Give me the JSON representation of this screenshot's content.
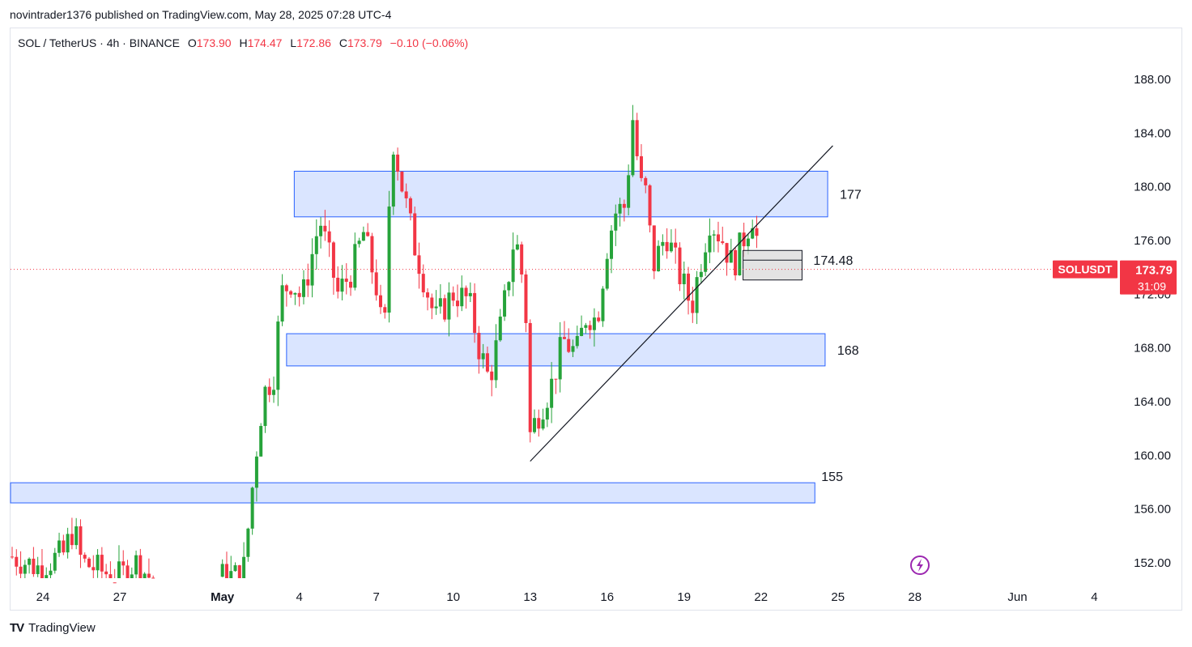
{
  "header": {
    "published_text": "novintrader1376 published on TradingView.com, May 28, 2025 07:28 UTC-4"
  },
  "legend": {
    "symbol": "SOL / TetherUS · 4h · BINANCE",
    "open_label": "O",
    "open": "173.90",
    "high_label": "H",
    "high": "174.47",
    "low_label": "L",
    "low": "172.86",
    "close_label": "C",
    "close": "173.79",
    "change": "−0.10 (−0.06%)"
  },
  "footer": {
    "brand": "TradingView",
    "logo": "TV"
  },
  "colors": {
    "up": "#26a33a",
    "down": "#f23645",
    "zone_fill": "#d6e2ff",
    "zone_stroke": "#2962ff",
    "box_fill": "#d9d9d9",
    "price_tag": "#f23645",
    "lightning": "#9c27b0"
  },
  "chart_data": {
    "type": "candlestick",
    "symbol": "SOLUSDT",
    "interval": "4h",
    "y_axis": {
      "ticks": [
        "152.00",
        "156.00",
        "160.00",
        "164.00",
        "168.00",
        "172.00",
        "176.00",
        "180.00",
        "184.00",
        "188.00"
      ],
      "ylim": [
        150.9,
        189.9
      ],
      "position": "right"
    },
    "x_axis": {
      "ticks": [
        "24",
        "27",
        "May",
        "4",
        "7",
        "10",
        "13",
        "16",
        "19",
        "22",
        "25",
        "28",
        "Jun",
        "4"
      ]
    },
    "last_price": {
      "symbol_label": "SOLUSDT",
      "price": "173.79",
      "countdown": "31:09"
    },
    "zones": [
      {
        "label": "177",
        "low": 177.7,
        "high": 181.1,
        "from_day": 9.8,
        "to_day": 30.6
      },
      {
        "label": "168",
        "low": 166.6,
        "high": 169.0,
        "from_day": 9.5,
        "to_day": 30.5
      },
      {
        "label": "155",
        "low": 156.4,
        "high": 157.9,
        "from_day": 0,
        "to_day": 30.1
      }
    ],
    "box": {
      "label": "174.48",
      "low": 173.0,
      "high": 175.2,
      "from_day": 27.3,
      "to_day": 29.6
    },
    "trendline": {
      "from": {
        "day": 19.0,
        "price": 159.5
      },
      "to": {
        "day": 30.8,
        "price": 183.0
      }
    },
    "candles": []
  }
}
